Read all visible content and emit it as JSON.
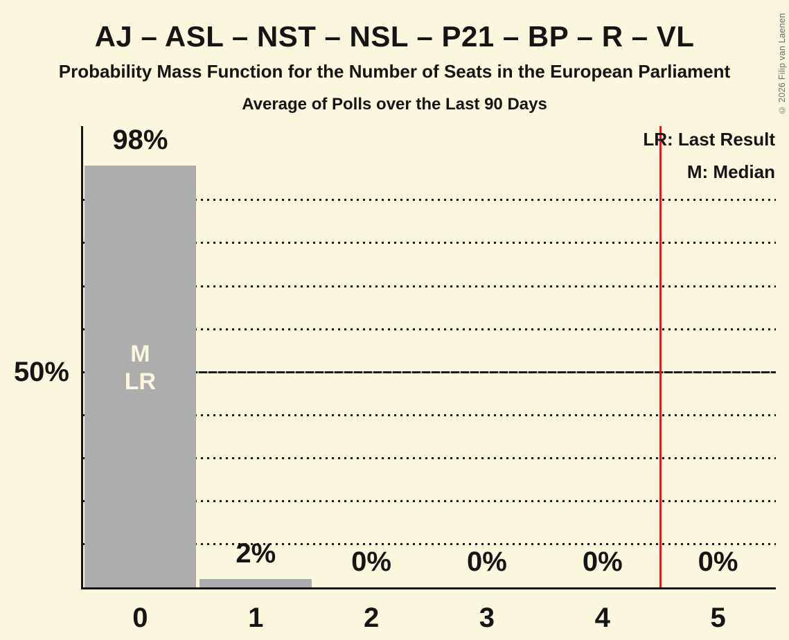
{
  "page": {
    "title": "AJ – ASL – NST – NSL – P21 – BP – R – VL",
    "subtitle": "Probability Mass Function for the Number of Seats in the European Parliament",
    "note": "Average of Polls over the Last 90 Days",
    "copyright": "© 2026 Filip van Laenen"
  },
  "legend": {
    "lr_label": "LR: Last Result",
    "m_label": "M: Median"
  },
  "colors": {
    "background": "#FBF6DE",
    "bar": "#ADADAD",
    "ink": "#151515",
    "grid": "#1C1C1C",
    "red_line": "#F1141E",
    "bar_annotation_text": "#FBF6DE",
    "copyright_text": "#6B6B6B"
  },
  "chart_data": {
    "type": "bar",
    "title": "AJ – ASL – NST – NSL – P21 – BP – R – VL",
    "subtitle": "Probability Mass Function for the Number of Seats in the European Parliament",
    "note": "Average of Polls over the Last 90 Days",
    "categories": [
      "0",
      "1",
      "2",
      "3",
      "4",
      "5"
    ],
    "values": [
      98,
      2,
      0,
      0,
      0,
      0
    ],
    "value_labels": [
      "98%",
      "2%",
      "0%",
      "0%",
      "0%",
      "0%"
    ],
    "y_axis_label": "50%",
    "ylim": [
      0,
      107
    ],
    "dotted_gridlines_pct": [
      10,
      20,
      30,
      40,
      60,
      70,
      80,
      90
    ],
    "solid_gridline_pct": 50,
    "median_bar_index": 0,
    "last_result_bar_index": 0,
    "bar_annotation_lines": [
      "M",
      "LR"
    ],
    "red_line_x": 4.5,
    "legend_entries": [
      "LR: Last Result",
      "M: Median"
    ],
    "grid": "dotted horizontal",
    "legend_position": "top-right"
  }
}
